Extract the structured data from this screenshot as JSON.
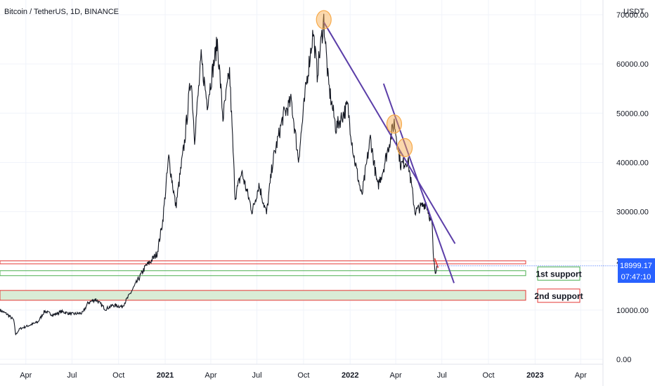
{
  "header": {
    "title": "Bitcoin / TetherUS, 1D, BINANCE"
  },
  "price_axis": {
    "currency": "USDT"
  },
  "badge": {
    "price": "18999.17",
    "countdown": "07:47:10"
  },
  "annotations": {
    "support1": "1st support",
    "support2": "2nd support"
  },
  "colors": {
    "candle": "#131722",
    "trendline": "#5b3ea8",
    "highlight_circle": "#f7a948",
    "support_green": "#4caf50",
    "support_red": "#e53935",
    "support_fill": "#d9ecd5",
    "badge_bg": "#2962ff",
    "dotted_price_line": "#2962ff"
  },
  "chart_data": {
    "type": "line",
    "title": "Bitcoin / TetherUS, 1D, BINANCE",
    "ylabel": "USDT",
    "ylim": [
      -1000,
      73000
    ],
    "xlim": [
      "2020-02-10",
      "2023-05-15"
    ],
    "y_ticks": [
      0,
      10000,
      20000,
      30000,
      40000,
      50000,
      60000,
      70000
    ],
    "y_tick_labels": [
      "0.00",
      "10000.00",
      "20000.00",
      "30000.00",
      "40000.00",
      "50000.00",
      "60000.00",
      "70000.00"
    ],
    "x_ticks": [
      {
        "date": "2020-04-01",
        "label": "Apr"
      },
      {
        "date": "2020-07-01",
        "label": "Jul"
      },
      {
        "date": "2020-10-01",
        "label": "Oct"
      },
      {
        "date": "2021-01-01",
        "label": "2021"
      },
      {
        "date": "2021-04-01",
        "label": "Apr"
      },
      {
        "date": "2021-07-01",
        "label": "Jul"
      },
      {
        "date": "2021-10-01",
        "label": "Oct"
      },
      {
        "date": "2022-01-01",
        "label": "2022"
      },
      {
        "date": "2022-04-01",
        "label": "Apr"
      },
      {
        "date": "2022-07-01",
        "label": "Jul"
      },
      {
        "date": "2022-10-01",
        "label": "Oct"
      },
      {
        "date": "2023-01-01",
        "label": "2023"
      },
      {
        "date": "2023-04-01",
        "label": "Apr"
      }
    ],
    "series": [
      {
        "values": [
          [
            "2020-02-10",
            10000
          ],
          [
            "2020-02-25",
            9100
          ],
          [
            "2020-03-08",
            8000
          ],
          [
            "2020-03-12",
            5000
          ],
          [
            "2020-03-20",
            6200
          ],
          [
            "2020-04-05",
            6800
          ],
          [
            "2020-04-25",
            7600
          ],
          [
            "2020-05-08",
            9800
          ],
          [
            "2020-05-25",
            9000
          ],
          [
            "2020-06-10",
            9700
          ],
          [
            "2020-07-01",
            9200
          ],
          [
            "2020-07-22",
            9400
          ],
          [
            "2020-08-02",
            11500
          ],
          [
            "2020-08-17",
            12200
          ],
          [
            "2020-09-05",
            10200
          ],
          [
            "2020-09-20",
            11000
          ],
          [
            "2020-10-08",
            10700
          ],
          [
            "2020-10-21",
            12800
          ],
          [
            "2020-11-05",
            15500
          ],
          [
            "2020-11-24",
            19000
          ],
          [
            "2020-11-30",
            19500
          ],
          [
            "2020-12-16",
            21500
          ],
          [
            "2020-12-27",
            28000
          ],
          [
            "2021-01-08",
            41000
          ],
          [
            "2021-01-22",
            31000
          ],
          [
            "2021-02-08",
            44000
          ],
          [
            "2021-02-21",
            57500
          ],
          [
            "2021-02-28",
            45000
          ],
          [
            "2021-03-13",
            61000
          ],
          [
            "2021-03-25",
            52000
          ],
          [
            "2021-04-14",
            64500
          ],
          [
            "2021-04-25",
            49000
          ],
          [
            "2021-05-08",
            58500
          ],
          [
            "2021-05-19",
            33000
          ],
          [
            "2021-06-01",
            38000
          ],
          [
            "2021-06-22",
            30000
          ],
          [
            "2021-07-05",
            35500
          ],
          [
            "2021-07-20",
            29500
          ],
          [
            "2021-08-01",
            40000
          ],
          [
            "2021-08-22",
            49500
          ],
          [
            "2021-09-07",
            52500
          ],
          [
            "2021-09-21",
            40500
          ],
          [
            "2021-10-06",
            55500
          ],
          [
            "2021-10-20",
            66500
          ],
          [
            "2021-10-28",
            58000
          ],
          [
            "2021-11-10",
            69000
          ],
          [
            "2021-11-19",
            56000
          ],
          [
            "2021-12-04",
            47000
          ],
          [
            "2021-12-27",
            51500
          ],
          [
            "2022-01-08",
            41500
          ],
          [
            "2022-01-24",
            33000
          ],
          [
            "2022-02-10",
            45000
          ],
          [
            "2022-02-24",
            35000
          ],
          [
            "2022-03-07",
            38500
          ],
          [
            "2022-03-29",
            48200
          ],
          [
            "2022-04-11",
            39500
          ],
          [
            "2022-04-25",
            40500
          ],
          [
            "2022-05-09",
            30000
          ],
          [
            "2022-05-31",
            31800
          ],
          [
            "2022-06-12",
            27000
          ],
          [
            "2022-06-14",
            21000
          ],
          [
            "2022-06-18",
            17600
          ],
          [
            "2022-06-21",
            18999
          ]
        ]
      }
    ],
    "trendlines": [
      {
        "points": [
          [
            "2021-11-10",
            68500
          ],
          [
            "2022-07-27",
            23500
          ]
        ]
      },
      {
        "points": [
          [
            "2022-03-08",
            56000
          ],
          [
            "2022-07-25",
            15500
          ]
        ]
      }
    ],
    "highlights": [
      {
        "date": "2021-11-10",
        "price": 69000
      },
      {
        "date": "2022-03-29",
        "price": 47800
      },
      {
        "date": "2022-04-19",
        "price": 43000
      }
    ],
    "zones": [
      {
        "label": "",
        "low": 19400,
        "high": 20000,
        "border": "red",
        "fill": false
      },
      {
        "label": "1st support",
        "low": 17000,
        "high": 18000,
        "border": "green",
        "fill": false
      },
      {
        "label": "2nd support",
        "low": 12000,
        "high": 14000,
        "border": "red",
        "fill": true
      }
    ],
    "last_price": 18999.17
  }
}
